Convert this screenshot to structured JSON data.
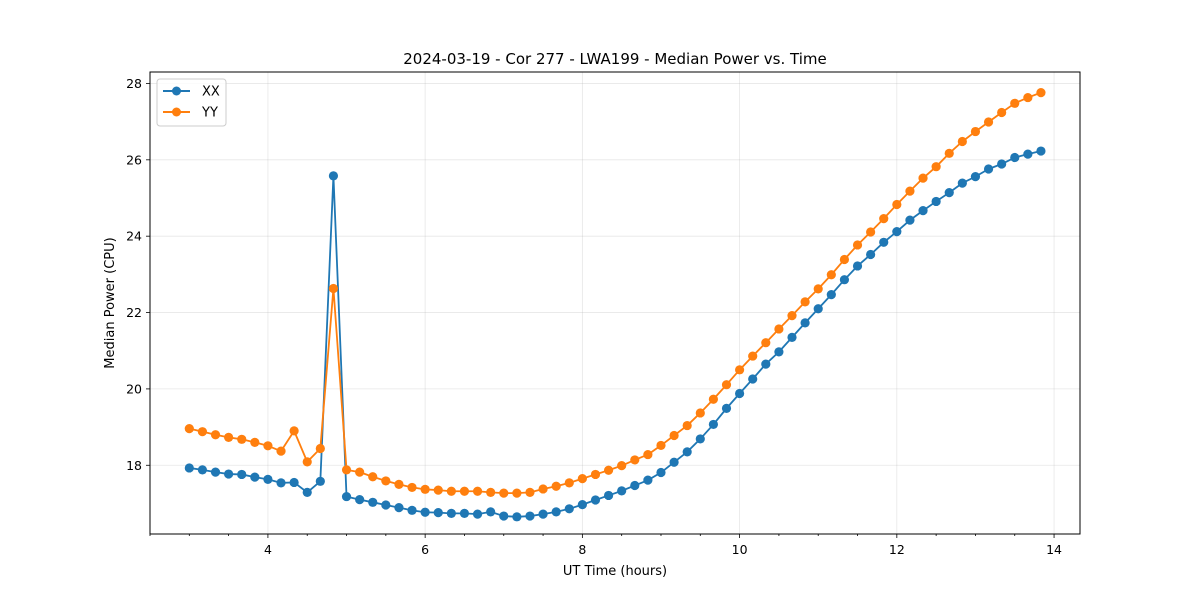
{
  "chart_data": {
    "type": "line",
    "title": "2024-03-19 - Cor 277 - LWA199 - Median Power vs. Time",
    "xlabel": "UT Time (hours)",
    "ylabel": "Median Power (CPU)",
    "xlim": [
      2.5,
      14.33
    ],
    "ylim": [
      16.2,
      28.3
    ],
    "xticks": [
      4,
      6,
      8,
      10,
      12,
      14
    ],
    "xtick_labels": [
      "4",
      "6",
      "8",
      "10",
      "12",
      "14"
    ],
    "xminor_step": 0.5,
    "yticks": [
      18,
      20,
      22,
      24,
      26,
      28
    ],
    "ytick_labels": [
      "18",
      "20",
      "22",
      "24",
      "26",
      "28"
    ],
    "grid": true,
    "legend_position": "top-left",
    "x": [
      3.0,
      3.1667,
      3.3333,
      3.5,
      3.6667,
      3.8333,
      4.0,
      4.1667,
      4.3333,
      4.5,
      4.6667,
      4.8333,
      5.0,
      5.1667,
      5.3333,
      5.5,
      5.6667,
      5.8333,
      6.0,
      6.1667,
      6.3333,
      6.5,
      6.6667,
      6.8333,
      7.0,
      7.1667,
      7.3333,
      7.5,
      7.6667,
      7.8333,
      8.0,
      8.1667,
      8.3333,
      8.5,
      8.6667,
      8.8333,
      9.0,
      9.1667,
      9.3333,
      9.5,
      9.6667,
      9.8333,
      10.0,
      10.1667,
      10.3333,
      10.5,
      10.6667,
      10.8333,
      11.0,
      11.1667,
      11.3333,
      11.5,
      11.6667,
      11.8333,
      12.0,
      12.1667,
      12.3333,
      12.5,
      12.6667,
      12.8333,
      13.0,
      13.1667,
      13.3333,
      13.5,
      13.6667,
      13.8333
    ],
    "series": [
      {
        "name": "XX",
        "color": "#1f77b4",
        "values": [
          17.93,
          17.88,
          17.82,
          17.77,
          17.76,
          17.69,
          17.63,
          17.54,
          17.55,
          17.29,
          17.58,
          25.58,
          17.18,
          17.1,
          17.03,
          16.96,
          16.89,
          16.82,
          16.77,
          16.76,
          16.74,
          16.74,
          16.72,
          16.78,
          16.67,
          16.65,
          16.67,
          16.72,
          16.78,
          16.86,
          16.97,
          17.09,
          17.21,
          17.33,
          17.47,
          17.61,
          17.81,
          18.08,
          18.35,
          18.69,
          19.07,
          19.49,
          19.88,
          20.26,
          20.65,
          20.97,
          21.35,
          21.73,
          22.1,
          22.47,
          22.86,
          23.22,
          23.52,
          23.84,
          24.12,
          24.42,
          24.67,
          24.91,
          25.14,
          25.39,
          25.56,
          25.76,
          25.89,
          26.06,
          26.15,
          26.23
        ]
      },
      {
        "name": "YY",
        "color": "#ff7f0e",
        "values": [
          18.96,
          18.88,
          18.8,
          18.73,
          18.68,
          18.6,
          18.51,
          18.37,
          18.9,
          18.09,
          18.44,
          22.63,
          17.88,
          17.82,
          17.7,
          17.59,
          17.5,
          17.42,
          17.37,
          17.35,
          17.32,
          17.32,
          17.32,
          17.29,
          17.27,
          17.27,
          17.29,
          17.38,
          17.45,
          17.54,
          17.65,
          17.76,
          17.87,
          17.99,
          18.14,
          18.28,
          18.52,
          18.78,
          19.04,
          19.37,
          19.73,
          20.11,
          20.5,
          20.86,
          21.21,
          21.57,
          21.92,
          22.28,
          22.62,
          22.99,
          23.39,
          23.77,
          24.11,
          24.46,
          24.83,
          25.18,
          25.52,
          25.82,
          26.17,
          26.48,
          26.74,
          26.99,
          27.24,
          27.48,
          27.63,
          27.76
        ]
      }
    ]
  }
}
